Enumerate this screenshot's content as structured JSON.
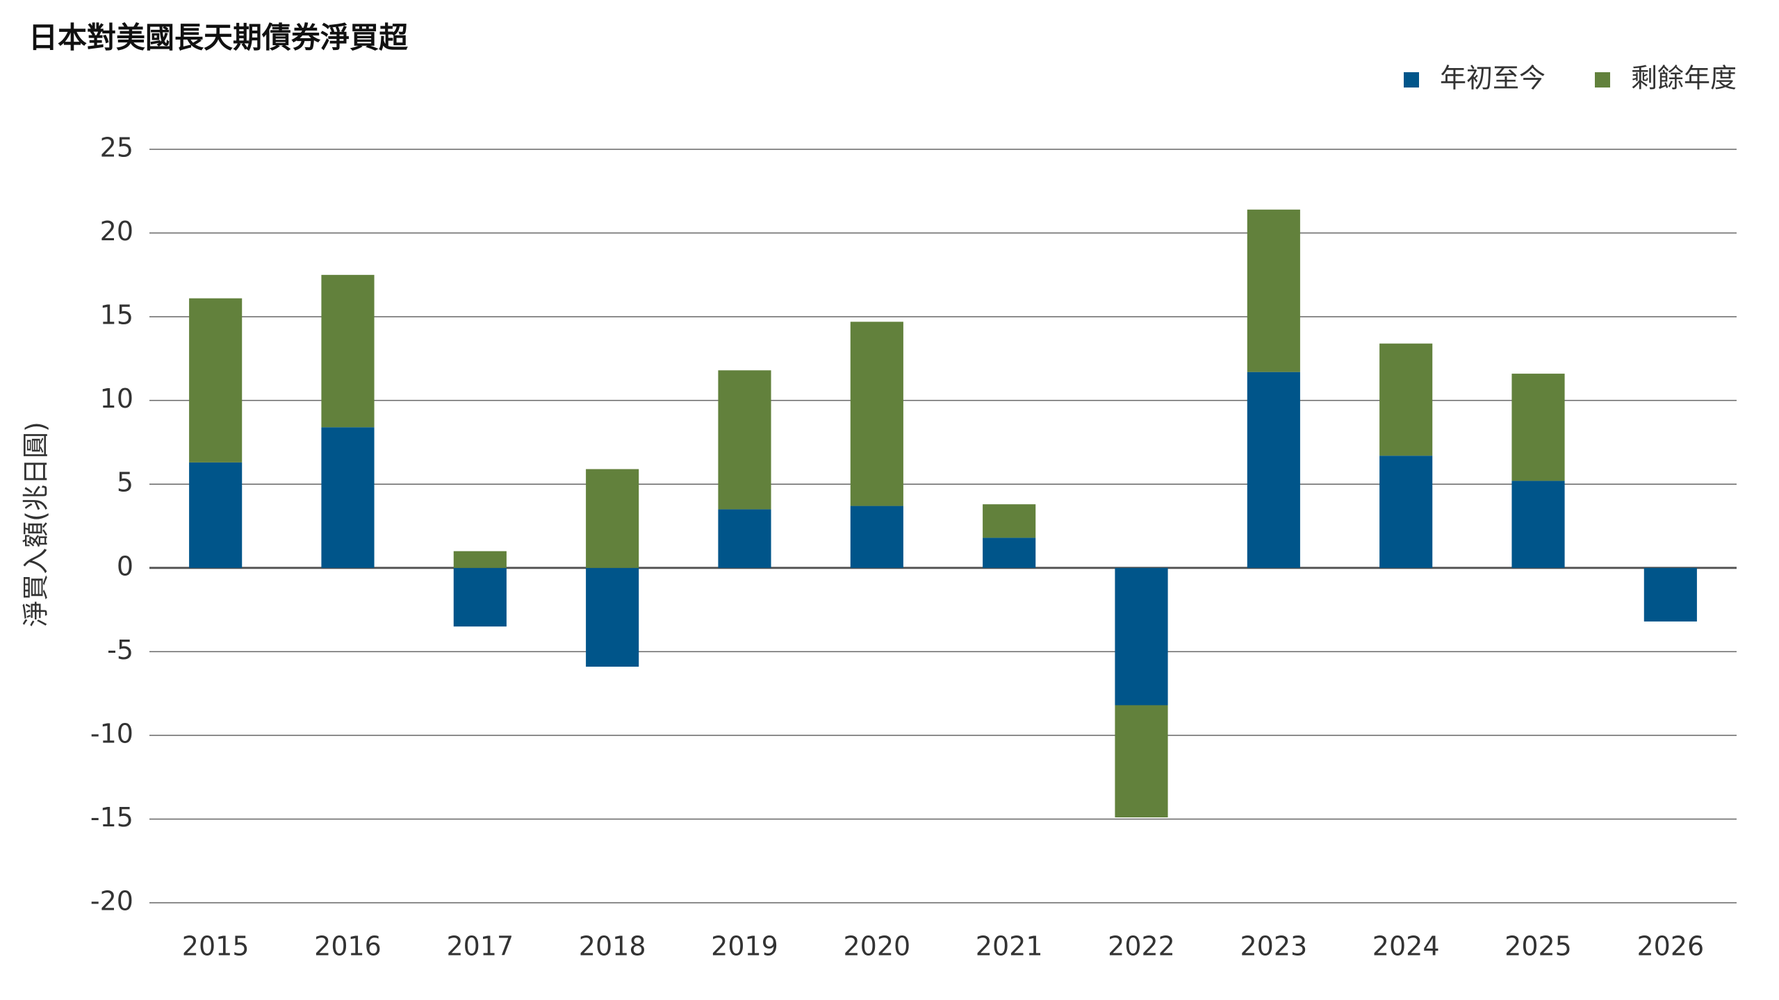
{
  "chart_data": {
    "type": "stacked_bar",
    "title": "日本對美國長天期債券淨買超",
    "y_label": "淨買入額(兆日圓)",
    "categories": [
      "2015",
      "2016",
      "2017",
      "2018",
      "2019",
      "2020",
      "2021",
      "2022",
      "2023",
      "2024",
      "2025",
      "2026"
    ],
    "series": [
      {
        "name": "年初至今",
        "color": "#00558a",
        "values": [
          6.3,
          8.4,
          -3.5,
          -5.9,
          3.5,
          3.7,
          1.8,
          -8.2,
          11.7,
          6.7,
          5.2,
          -3.2
        ]
      },
      {
        "name": "剩餘年度",
        "color": "#62813c",
        "values": [
          9.8,
          9.1,
          1.0,
          5.9,
          8.3,
          11.0,
          2.0,
          -6.7,
          9.7,
          6.7,
          6.4,
          null
        ]
      }
    ],
    "ylim": [
      -20,
      25
    ],
    "yticks": [
      -20,
      -15,
      -10,
      -5,
      0,
      5,
      10,
      15,
      20,
      25
    ],
    "grid": true,
    "legend_position": "top-right"
  }
}
